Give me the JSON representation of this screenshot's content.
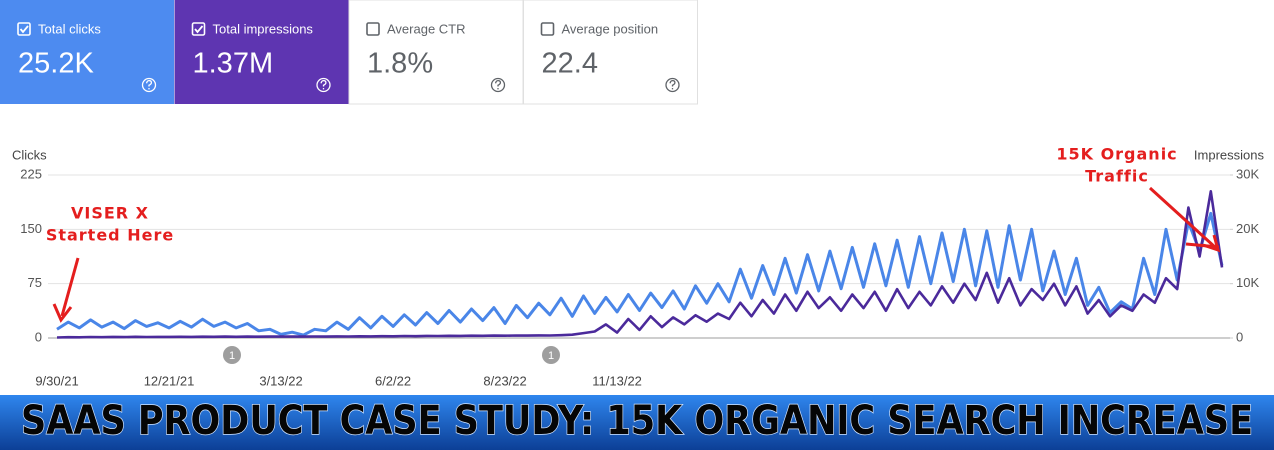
{
  "metrics": [
    {
      "label": "Total clicks",
      "value": "25.2K",
      "checked": true,
      "color": "#4d8bf0"
    },
    {
      "label": "Total impressions",
      "value": "1.37M",
      "checked": true,
      "color": "#5e35b1"
    },
    {
      "label": "Average CTR",
      "value": "1.8%",
      "checked": false,
      "color": "#ffffff"
    },
    {
      "label": "Average position",
      "value": "22.4",
      "checked": false,
      "color": "#ffffff"
    }
  ],
  "chart_data": {
    "type": "line",
    "ylabel": "Clicks",
    "y2label": "Impressions",
    "categories": [
      "9/30/21",
      null,
      null,
      null,
      null,
      null,
      null,
      null,
      null,
      null,
      "12/21/21",
      null,
      null,
      null,
      null,
      null,
      null,
      null,
      null,
      null,
      "3/13/22",
      null,
      null,
      null,
      null,
      null,
      null,
      null,
      null,
      null,
      "6/2/22",
      null,
      null,
      null,
      null,
      null,
      null,
      null,
      null,
      null,
      "8/23/22",
      null,
      null,
      null,
      null,
      null,
      null,
      null,
      null,
      null,
      "11/13/22",
      null,
      null,
      null,
      null,
      null,
      null,
      null,
      null,
      null,
      null,
      null,
      null,
      null,
      null,
      null,
      null,
      null,
      null,
      null,
      null,
      null,
      null,
      null,
      null,
      null,
      null,
      null,
      null,
      null,
      null,
      null,
      null,
      null,
      null,
      null,
      null,
      null,
      null,
      null,
      null,
      null,
      null,
      null,
      null,
      null,
      null,
      null,
      null,
      null,
      null,
      null,
      null,
      null,
      null
    ],
    "series": [
      {
        "color": "#4a86e8",
        "axis": "y",
        "values": [
          12,
          22,
          14,
          25,
          15,
          22,
          13,
          24,
          16,
          21,
          14,
          23,
          15,
          26,
          16,
          22,
          14,
          20,
          10,
          12,
          5,
          8,
          4,
          12,
          10,
          22,
          12,
          28,
          14,
          30,
          16,
          32,
          18,
          35,
          20,
          38,
          22,
          40,
          24,
          42,
          20,
          45,
          28,
          48,
          32,
          55,
          30,
          58,
          34,
          56,
          36,
          60,
          38,
          62,
          42,
          65,
          40,
          72,
          48,
          75,
          50,
          95,
          55,
          100,
          60,
          110,
          62,
          115,
          65,
          120,
          68,
          125,
          70,
          130,
          72,
          135,
          70,
          140,
          75,
          145,
          78,
          150,
          72,
          148,
          70,
          155,
          80,
          150,
          65,
          120,
          60,
          110,
          45,
          70,
          35,
          50,
          40,
          110,
          60,
          150,
          80,
          160,
          120,
          172,
          100
        ]
      },
      {
        "color": "#4b2a9b",
        "axis": "y2",
        "values": [
          100,
          150,
          120,
          180,
          150,
          200,
          160,
          220,
          180,
          200,
          200,
          220,
          200,
          240,
          220,
          250,
          230,
          260,
          240,
          250,
          250,
          260,
          250,
          280,
          260,
          300,
          280,
          320,
          300,
          340,
          320,
          360,
          340,
          380,
          360,
          400,
          380,
          420,
          400,
          440,
          420,
          460,
          440,
          480,
          460,
          520,
          600,
          900,
          1200,
          2500,
          1000,
          3500,
          1500,
          4000,
          2000,
          3800,
          2500,
          4200,
          3000,
          4500,
          3500,
          6500,
          4000,
          7000,
          4500,
          8000,
          5000,
          8500,
          5500,
          7500,
          5000,
          8000,
          5500,
          8500,
          5000,
          9000,
          5500,
          8500,
          6000,
          9500,
          6500,
          10000,
          7000,
          12000,
          6500,
          11000,
          6000,
          9000,
          7000,
          10000,
          6000,
          9500,
          4500,
          7000,
          4000,
          6000,
          5000,
          8000,
          6500,
          11000,
          9000,
          24000,
          15000,
          27000,
          13000
        ]
      }
    ],
    "ylim": [
      0,
      225
    ],
    "yticks": [
      0,
      75,
      150,
      225
    ],
    "y2lim": [
      0,
      30000
    ],
    "y2ticks": [
      0,
      {
        "value": 10000,
        "label": "10K"
      },
      {
        "value": 20000,
        "label": "20K"
      },
      {
        "value": 30000,
        "label": "30K"
      }
    ],
    "grid": true,
    "events": [
      "1",
      "1"
    ],
    "annotations": [
      {
        "lines": [
          "VISER X",
          "Started Here"
        ],
        "color": "#e41e1e"
      },
      {
        "lines": [
          "15K Organic",
          "Traffic"
        ],
        "color": "#e41e1e"
      }
    ]
  },
  "banner": "SAAS PRODUCT CASE STUDY: 15K ORGANIC SEARCH INCREASE"
}
